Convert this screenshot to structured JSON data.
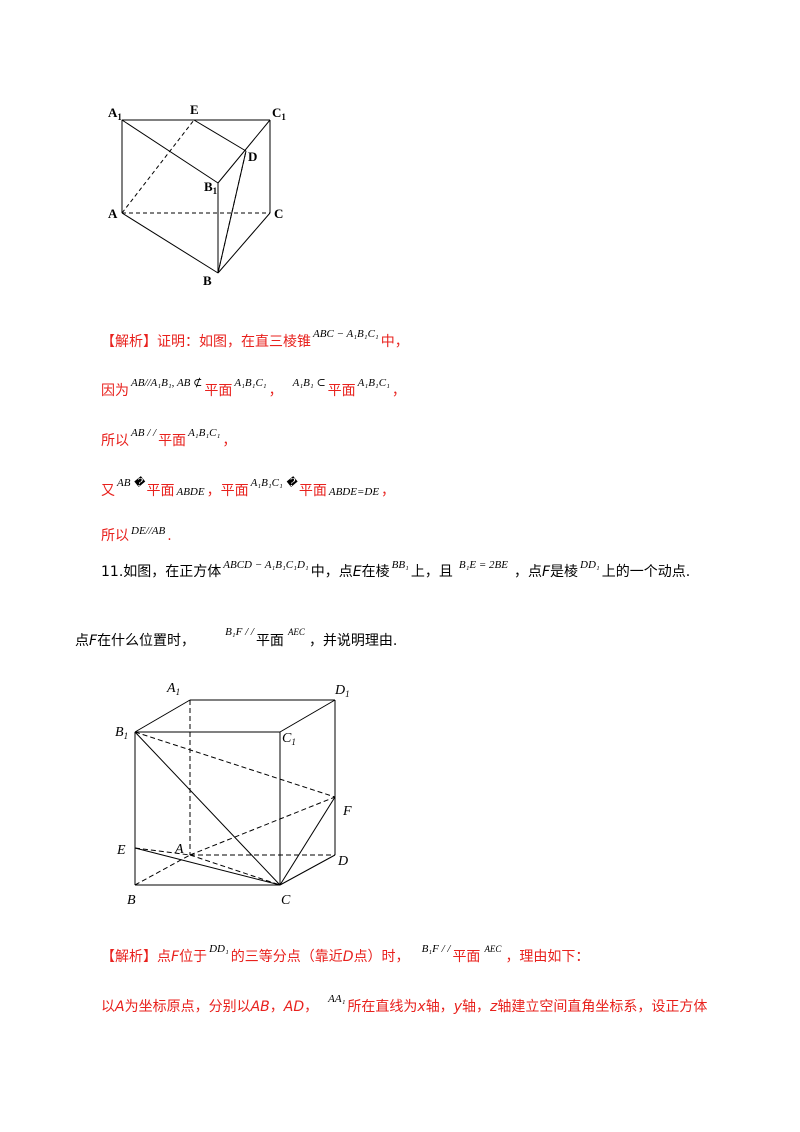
{
  "figure1": {
    "labels": {
      "A1": "A",
      "E": "E",
      "C1": "C",
      "D": "D",
      "B1": "B",
      "A": "A",
      "C": "C",
      "B": "B",
      "sub1": "1"
    }
  },
  "sol1": {
    "tag": "【解析】",
    "l1_text": "证明：如图，在直三棱锥",
    "l1_math": "ABC − A₁B₁C₁",
    "l1_end": "中，",
    "l2_a": "因为",
    "l2_m1": "AB//A₁B₁, AB ⊄",
    "l2_b": "平面",
    "l2_m2": "A₁B₁C₁",
    "l2_c": "，",
    "l2_m3": "A₁B₁ ⊂",
    "l2_d": "平面",
    "l2_m4": "A₁B₁C₁",
    "l2_e": "，",
    "l3_a": "所以",
    "l3_m1": "AB / /",
    "l3_b": "平面",
    "l3_m2": "A₁B₁C₁",
    "l3_c": "，",
    "l4_a": "又",
    "l4_m1": "AB �",
    "l4_b": "平面",
    "l4_m2": "ABDE",
    "l4_c": "，平面",
    "l4_m3": "A₁B₁C₁ �",
    "l4_d": "平面",
    "l4_m4": "ABDE=DE",
    "l4_e": "，",
    "l5_a": "所以",
    "l5_m1": "DE//AB",
    "l5_b": "."
  },
  "problem11": {
    "num": "11.",
    "t1": "如图，在正方体",
    "m1": "ABCD − A₁B₁C₁D₁",
    "t2": "中，点",
    "e1": "E",
    "t3": "在棱",
    "m2": "BB₁",
    "t4": "上，且",
    "m3": "B₁E = 2BE",
    "t5": "，点",
    "f1": "F",
    "t6": "是棱",
    "m4": "DD₁",
    "t7": "上的一个动点.",
    "q_a": "点",
    "q_f": "F",
    "q_b": "在什么位置时，",
    "q_m1": "B₁F / /",
    "q_c": "平面",
    "q_m2": "AEC",
    "q_d": "，并说明理由."
  },
  "figure2": {
    "labels": {
      "A1": "A",
      "D1": "D",
      "B1": "B",
      "C1": "C",
      "F": "F",
      "E": "E",
      "A": "A",
      "D": "D",
      "B": "B",
      "C": "C",
      "sub1": "1"
    }
  },
  "sol2": {
    "tag": "【解析】",
    "a1": "点",
    "f": "F",
    "a2": "位于",
    "m1": "DD₁",
    "a3": "的三等分点（靠近",
    "d": "D",
    "a4": "点）时，",
    "m2": "B₁F / /",
    "a5": "平面",
    "m3": "AEC",
    "a6": "，理由如下：",
    "b1": "以",
    "bA": "A",
    "b2": "为坐标原点，分别以",
    "bAB": "AB",
    "b3": "，",
    "bAD": "AD",
    "b4": "，",
    "bm": "AA₁",
    "b5": "所在直线为",
    "bx": "x",
    "b6": "轴，",
    "by": "y",
    "b7": "轴，",
    "bz": "z",
    "b8": "轴建立空间直角坐标系，设正方体"
  }
}
